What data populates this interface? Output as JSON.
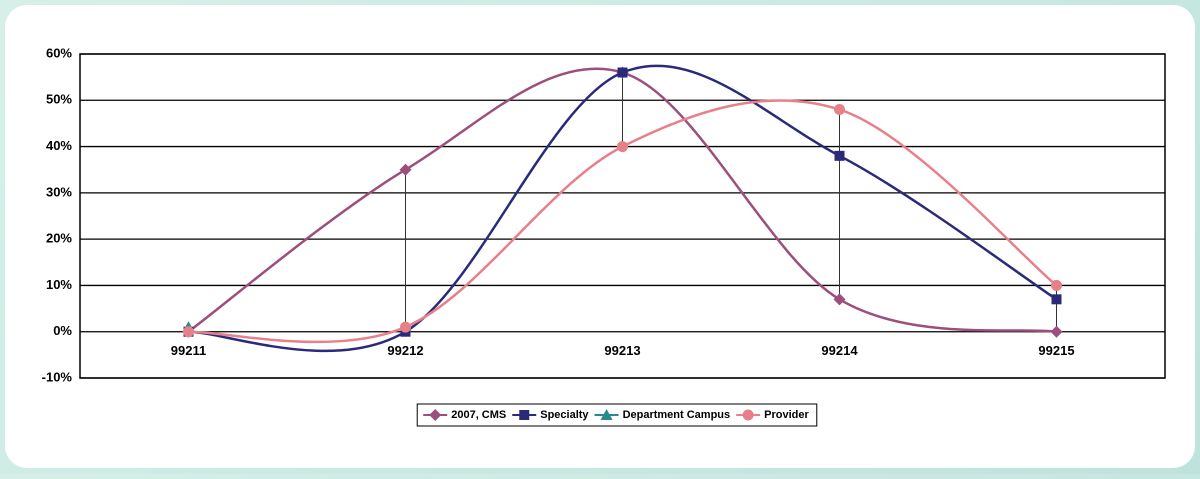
{
  "chart_data": {
    "type": "line",
    "smooth": true,
    "high_low_lines": true,
    "grid": true,
    "categories": [
      "99211",
      "99212",
      "99213",
      "99214",
      "99215"
    ],
    "series": [
      {
        "name": "2007, CMS",
        "color": "#9b4f7a",
        "marker": "diamond",
        "values": [
          0,
          35,
          56,
          7,
          0
        ]
      },
      {
        "name": "Specialty",
        "color": "#2b2a7a",
        "marker": "square",
        "values": [
          0,
          0,
          56,
          38,
          7
        ]
      },
      {
        "name": "Department Campus",
        "color": "#2a8a8a",
        "marker": "triangle",
        "values": [
          1,
          null,
          null,
          null,
          null
        ]
      },
      {
        "name": "Provider",
        "color": "#e8808a",
        "marker": "circle",
        "values": [
          0,
          1,
          40,
          48,
          10
        ]
      }
    ],
    "ylim": [
      -10,
      60
    ],
    "yticks": [
      {
        "value": -10,
        "label": "-10%"
      },
      {
        "value": 0,
        "label": "0%"
      },
      {
        "value": 10,
        "label": "10%"
      },
      {
        "value": 20,
        "label": "20%"
      },
      {
        "value": 30,
        "label": "30%"
      },
      {
        "value": 40,
        "label": "40%"
      },
      {
        "value": 50,
        "label": "50%"
      },
      {
        "value": 60,
        "label": "60%"
      }
    ],
    "legend": "bottom"
  }
}
